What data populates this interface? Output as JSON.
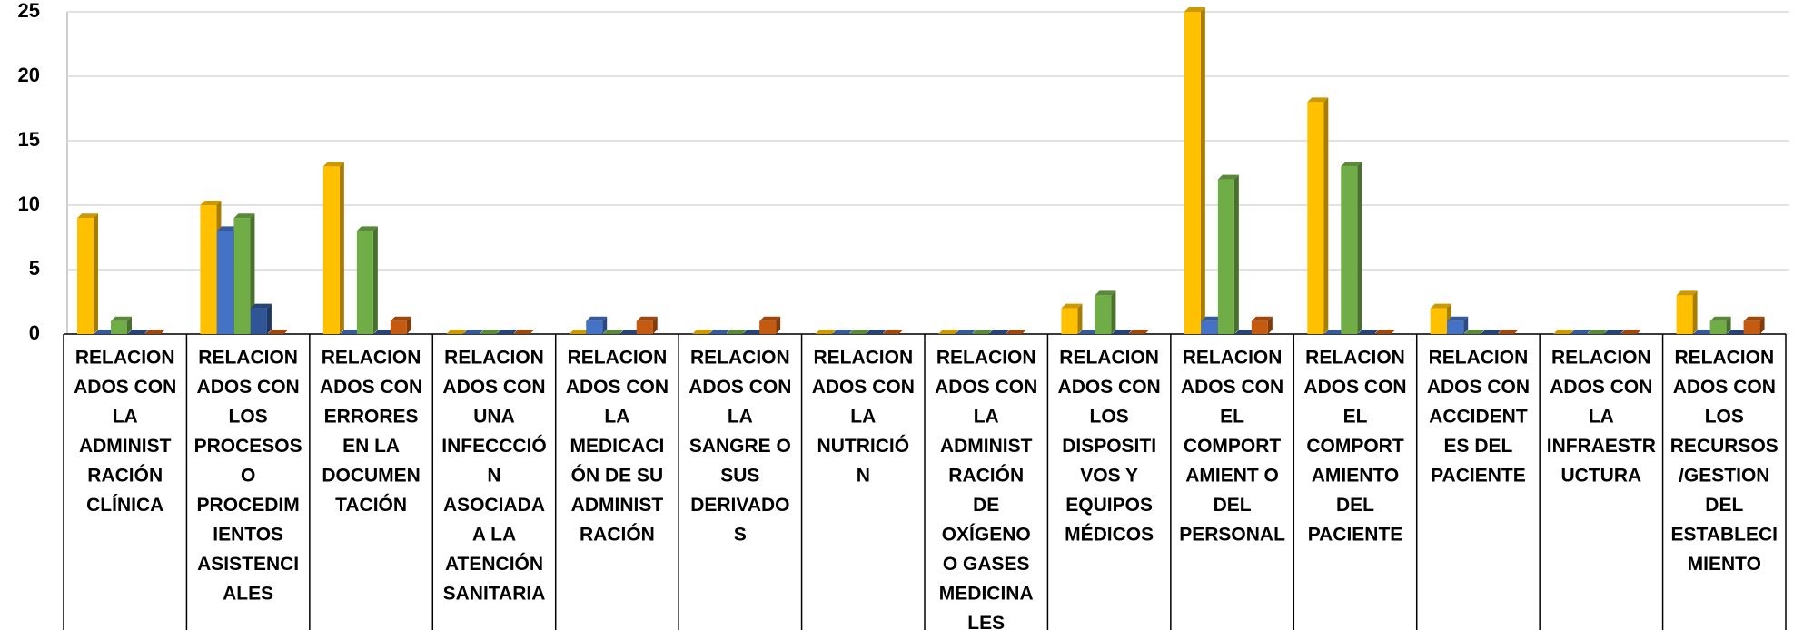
{
  "chart_data": {
    "type": "bar3d",
    "categories": [
      [
        "RELACION",
        "ADOS CON",
        "LA",
        "ADMINIST",
        "RACIÓN",
        "CLÍNICA"
      ],
      [
        "RELACION",
        "ADOS CON",
        "LOS",
        "PROCESOS",
        "O",
        "PROCEDIM",
        "IENTOS",
        "ASISTENCI",
        "ALES"
      ],
      [
        "RELACION",
        "ADOS CON",
        "ERRORES",
        "EN LA",
        "DOCUMEN",
        "TACIÓN"
      ],
      [
        "RELACION",
        "ADOS CON",
        "UNA",
        "INFECCCIÓ",
        "N",
        "ASOCIADA",
        "A LA",
        "ATENCIÓN",
        "SANITARIA"
      ],
      [
        "RELACION",
        "ADOS CON",
        "LA",
        "MEDICACI",
        "ÓN  DE SU",
        "ADMINIST",
        "RACIÓN"
      ],
      [
        "RELACION",
        "ADOS CON",
        "LA",
        "SANGRE O",
        "SUS",
        "DERIVADO",
        "S"
      ],
      [
        "RELACION",
        "ADOS CON",
        "LA",
        "NUTRICIÓ",
        "N"
      ],
      [
        "RELACION",
        "ADOS CON",
        "LA",
        "ADMINIST",
        "RACIÓN",
        "DE",
        "OXÍGENO",
        "O GASES",
        "MEDICINA",
        "LES"
      ],
      [
        "RELACION",
        "ADOS CON",
        "LOS",
        "DISPOSITI",
        "VOS Y",
        "EQUIPOS",
        "MÉDICOS"
      ],
      [
        "RELACION",
        "ADOS CON",
        "EL",
        "COMPORT",
        "AMIENT O",
        "DEL",
        "PERSONAL"
      ],
      [
        "RELACION",
        "ADOS CON",
        "EL",
        "COMPORT",
        "AMIENTO",
        "DEL",
        "PACIENTE"
      ],
      [
        "RELACION",
        "ADOS CON",
        "ACCIDENT",
        "ES DEL",
        "PACIENTE"
      ],
      [
        "RELACION",
        "ADOS CON",
        "LA",
        "INFRAESTR",
        "UCTURA"
      ],
      [
        "RELACION",
        "ADOS CON",
        "LOS",
        "RECURSOS",
        "/GESTION",
        "DEL",
        "ESTABLECI",
        "MIENTO"
      ]
    ],
    "series": [
      {
        "color": "#ffc000",
        "values": [
          9,
          10,
          13,
          0,
          0,
          0,
          0,
          0,
          2,
          25,
          18,
          2,
          0,
          3
        ]
      },
      {
        "color": "#4472c4",
        "values": [
          0,
          8,
          0,
          0,
          1,
          0,
          0,
          0,
          0,
          1,
          0,
          1,
          0,
          0
        ]
      },
      {
        "color": "#70ad47",
        "values": [
          1,
          9,
          8,
          0,
          0,
          0,
          0,
          0,
          3,
          12,
          13,
          0,
          0,
          1
        ]
      },
      {
        "color": "#2f5597",
        "values": [
          0,
          2,
          0,
          0,
          0,
          0,
          0,
          0,
          0,
          0,
          0,
          0,
          0,
          0
        ]
      },
      {
        "color": "#c55a11",
        "values": [
          0,
          0,
          1,
          0,
          1,
          1,
          0,
          0,
          0,
          1,
          0,
          0,
          0,
          1
        ]
      }
    ],
    "ylim": [
      0,
      25
    ],
    "yticks": [
      0,
      5,
      10,
      15,
      20,
      25
    ],
    "grid": true
  }
}
